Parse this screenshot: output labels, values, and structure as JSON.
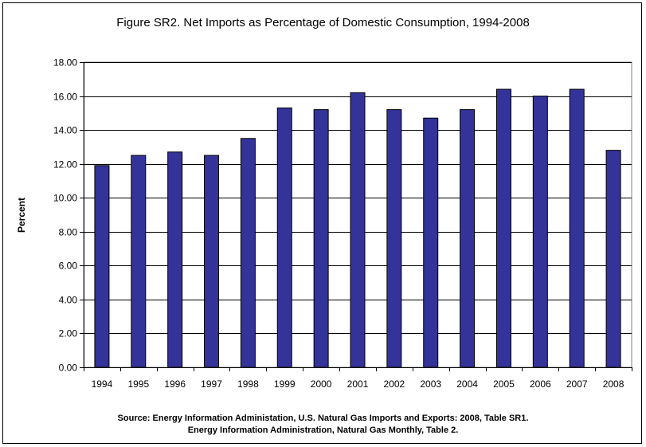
{
  "chart_data": {
    "type": "bar",
    "title": "Figure SR2. Net Imports as Percentage of Domestic Consumption, 1994-2008",
    "xlabel": "",
    "ylabel": "Percent",
    "categories": [
      "1994",
      "1995",
      "1996",
      "1997",
      "1998",
      "1999",
      "2000",
      "2001",
      "2002",
      "2003",
      "2004",
      "2005",
      "2006",
      "2007",
      "2008"
    ],
    "values": [
      11.9,
      12.5,
      12.7,
      12.5,
      13.5,
      15.3,
      15.2,
      16.2,
      15.2,
      14.7,
      15.2,
      16.4,
      16.0,
      16.4,
      12.8
    ],
    "ylim": [
      0,
      18
    ],
    "yticks": [
      "0.00",
      "2.00",
      "4.00",
      "6.00",
      "8.00",
      "10.00",
      "12.00",
      "14.00",
      "16.00",
      "18.00"
    ],
    "grid": true,
    "bar_color": "#333399"
  },
  "source": {
    "line1": "Source: Energy Information Administation, U.S. Natural Gas Imports and Exports: 2008, Table SR1.",
    "line2": "Energy Information Administration, Natural Gas Monthly, Table 2."
  }
}
